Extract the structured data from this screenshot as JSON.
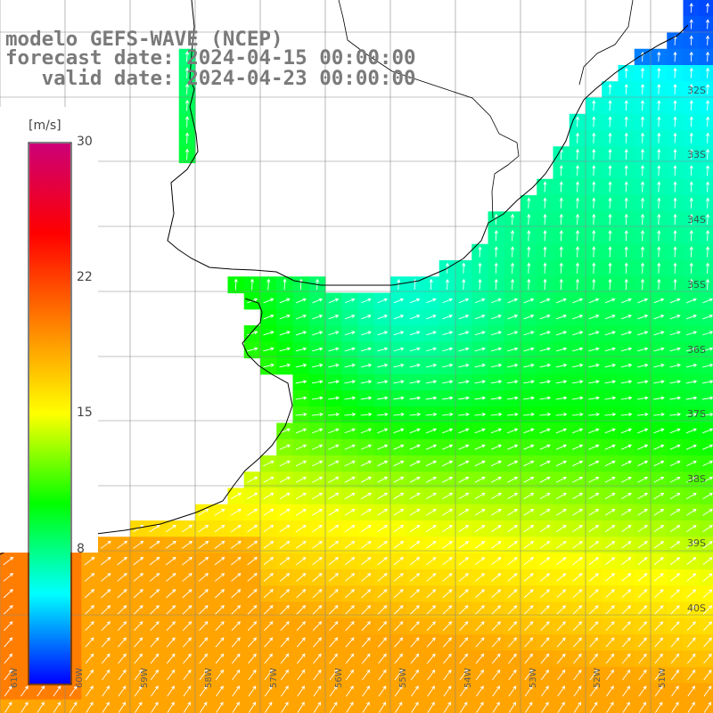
{
  "header": {
    "line1": "modelo GEFS-WAVE (NCEP)",
    "line2": "forecast date: 2024-04-15 00:00:00",
    "line3": "   valid date: 2024-04-23 00:00:00"
  },
  "colorbar": {
    "unit": "[m/s]",
    "min": 0,
    "max": 30,
    "ticks": [
      "30",
      "22",
      "15",
      "8"
    ],
    "colors": [
      "#0000ff",
      "#00ffff",
      "#00ff00",
      "#ffff00",
      "#ff8000",
      "#ff0000",
      "#cc0077"
    ]
  },
  "axes": {
    "lat_labels": [
      "32S",
      "33S",
      "34S",
      "35S",
      "36S",
      "37S",
      "38S",
      "39S",
      "40S"
    ],
    "lon_labels": [
      "61W",
      "60W",
      "59W",
      "58W",
      "57W",
      "56W",
      "55W",
      "54W",
      "53W",
      "52W",
      "51W"
    ]
  },
  "map_colors": {
    "land": "#ffffff",
    "coastline": "#000000",
    "grid": "#888888",
    "arrows": "#ffffff"
  }
}
